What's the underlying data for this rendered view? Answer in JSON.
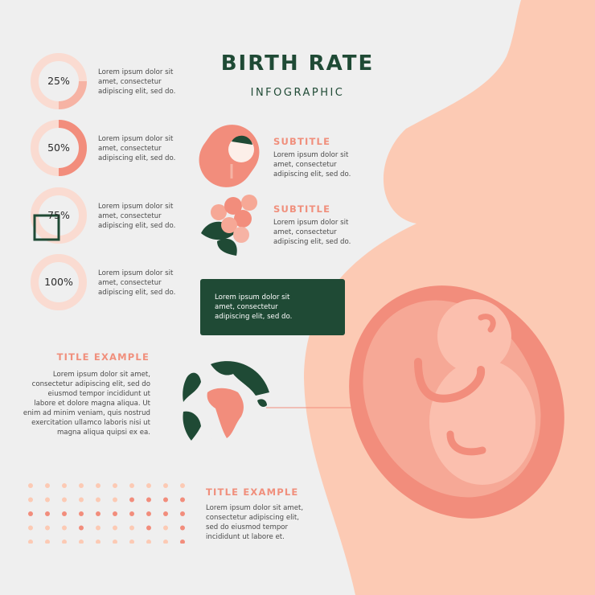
{
  "header": {
    "title": "BIRTH RATE",
    "subtitle": "INFOGRAPHIC"
  },
  "percent_items": [
    {
      "label": "25%",
      "value": 0.25,
      "text": [
        "Lorem ipsum dolor sit",
        "amet, consectetur",
        "adipiscing elit, sed do."
      ]
    },
    {
      "label": "50%",
      "value": 0.5,
      "text": [
        "Lorem ipsum dolor sit",
        "amet, consectetur",
        "adipiscing elit, sed do."
      ]
    },
    {
      "label": "75%",
      "value": 0.75,
      "text": [
        "Lorem ipsum dolor sit",
        "amet, consectetur",
        "adipiscing elit, sed do."
      ]
    },
    {
      "label": "100%",
      "value": 1.0,
      "text": [
        "Lorem ipsum dolor sit",
        "amet, consectetur",
        "adipiscing elit, sed do."
      ]
    }
  ],
  "subtitle_blocks": [
    {
      "heading": "SUBTITLE",
      "text": [
        "Lorem ipsum dolor sit",
        "amet, consectetur",
        "adipiscing elit, sed do."
      ]
    },
    {
      "heading": "SUBTITLE",
      "text": [
        "Lorem ipsum dolor sit",
        "amet, consectetur",
        "adipiscing elit, sed do."
      ]
    }
  ],
  "dark_box": {
    "text": [
      "Lorem ipsum dolor sit",
      "amet, consectetur",
      "adipiscing elit, sed do."
    ]
  },
  "title_example_1": {
    "heading": "TITLE EXAMPLE",
    "text": [
      "Lorem ipsum dolor sit amet,",
      "consectetur adipiscing elit, sed do",
      "eiusmod tempor incididunt ut",
      "labore et dolore magna aliqua. Ut",
      "enim ad minim veniam, quis nostrud",
      "exercitation ullamco laboris nisi ut",
      "magna aliqua quipsi ex ea."
    ]
  },
  "title_example_2": {
    "heading": "TITLE EXAMPLE",
    "text": [
      "Lorem ipsum dolor sit amet,",
      "consectetur adipiscing elit,",
      "sed do eiusmod tempor",
      "incididunt ut labore et."
    ]
  },
  "colors": {
    "dark_green": "#1f4a35",
    "salmon": "#f08f7c",
    "peach": "#fccab4",
    "coral": "#f28d7c",
    "background": "#efefef"
  }
}
